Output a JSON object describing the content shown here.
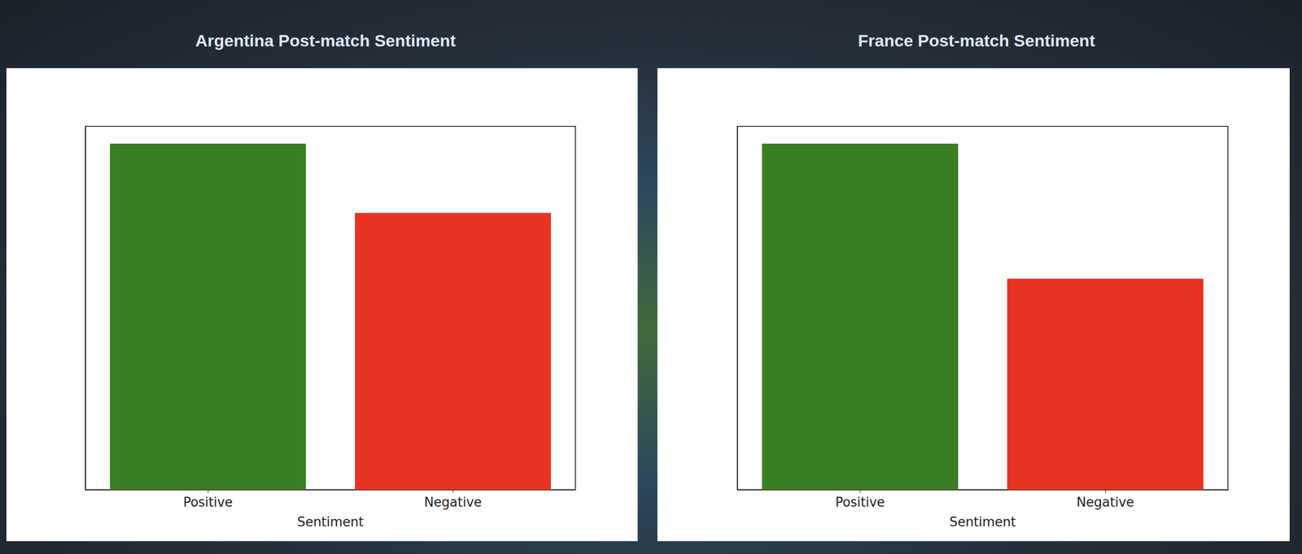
{
  "chart_data": [
    {
      "type": "bar",
      "title": "Argentina Post-match Sentiment",
      "categories": [
        "Positive",
        "Negative"
      ],
      "values": [
        100,
        80
      ],
      "colors": [
        "#3a7d22",
        "#e83323"
      ],
      "xlabel": "Sentiment",
      "ylim": [
        0,
        105
      ],
      "tick_labels": "x"
    },
    {
      "type": "bar",
      "title": "France Post-match Sentiment",
      "categories": [
        "Positive",
        "Negative"
      ],
      "values": [
        100,
        61
      ],
      "colors": [
        "#3a7d22",
        "#e83323"
      ],
      "xlabel": "Sentiment",
      "ylim": [
        0,
        105
      ],
      "tick_labels": "x"
    }
  ]
}
